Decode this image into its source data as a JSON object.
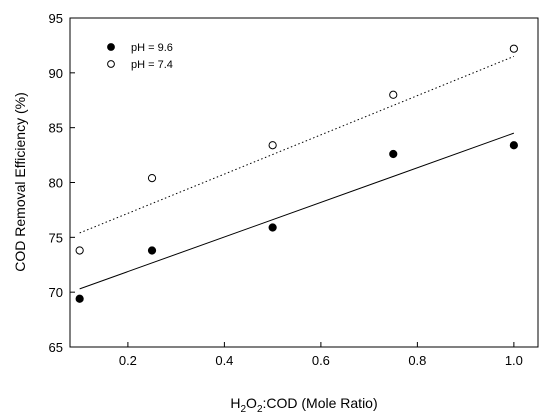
{
  "chart_data": {
    "type": "scatter",
    "xlabel_parts": [
      "H",
      "2",
      "O",
      "2",
      ":COD (Mole Ratio)"
    ],
    "ylabel": "COD Removal Efficiency (%)",
    "xlim": [
      0.08,
      1.05
    ],
    "ylim": [
      65,
      95
    ],
    "x_ticks": [
      0.2,
      0.4,
      0.6,
      0.8,
      1.0
    ],
    "x_tick_labels": [
      "0.2",
      "0.4",
      "0.6",
      "0.8",
      "1.0"
    ],
    "y_ticks": [
      65,
      70,
      75,
      80,
      85,
      90,
      95
    ],
    "y_tick_labels": [
      "65",
      "70",
      "75",
      "80",
      "85",
      "90",
      "95"
    ],
    "grid": false,
    "legend_position": "top-left",
    "series": [
      {
        "name": "pH = 9.6",
        "marker": "filled-circle",
        "trendline": "solid",
        "x": [
          0.1,
          0.25,
          0.5,
          0.75,
          1.0
        ],
        "y": [
          69.4,
          73.8,
          75.9,
          82.6,
          83.4
        ],
        "trend_y": [
          70.3,
          84.5
        ]
      },
      {
        "name": "pH = 7.4",
        "marker": "open-circle",
        "trendline": "dotted",
        "x": [
          0.1,
          0.25,
          0.5,
          0.75,
          1.0
        ],
        "y": [
          73.8,
          80.4,
          83.4,
          88.0,
          92.2
        ],
        "trend_y": [
          75.4,
          91.5
        ]
      }
    ]
  }
}
